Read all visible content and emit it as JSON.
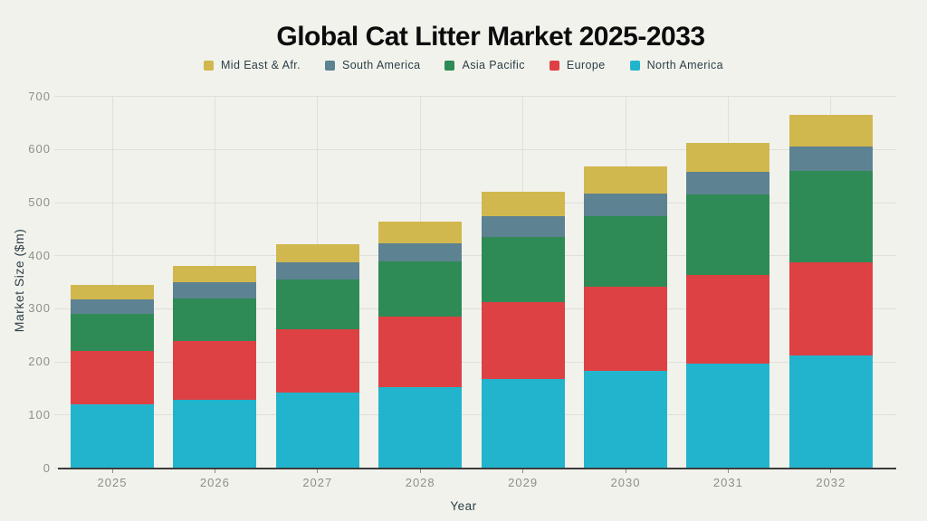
{
  "chart_data": {
    "type": "bar",
    "stacked": true,
    "title": "Global Cat Litter Market 2025-2033",
    "xlabel": "Year",
    "ylabel": "Market Size ($m)",
    "categories": [
      "2025",
      "2026",
      "2027",
      "2028",
      "2029",
      "2030",
      "2031",
      "2032"
    ],
    "series": [
      {
        "name": "Mid East & Afr.",
        "color": "#d1b84e",
        "values": [
          27,
          29,
          34,
          41,
          46,
          51,
          54,
          61
        ]
      },
      {
        "name": "South America",
        "color": "#5d8292",
        "values": [
          27,
          31,
          33,
          34,
          39,
          42,
          43,
          45
        ]
      },
      {
        "name": "Asia Pacific",
        "color": "#2e8b55",
        "values": [
          71,
          80,
          93,
          104,
          122,
          134,
          151,
          172
        ]
      },
      {
        "name": "Europe",
        "color": "#dd4144",
        "values": [
          100,
          111,
          119,
          132,
          145,
          157,
          167,
          176
        ]
      },
      {
        "name": "North America",
        "color": "#23b4cd",
        "values": [
          120,
          129,
          143,
          153,
          168,
          184,
          197,
          212
        ]
      }
    ],
    "stack_order_bottom_to_top": [
      "North America",
      "Europe",
      "Asia Pacific",
      "South America",
      "Mid East & Afr."
    ],
    "totals": [
      345,
      380,
      422,
      464,
      520,
      568,
      612,
      666
    ],
    "y_ticks": [
      0,
      100,
      200,
      300,
      400,
      500,
      600,
      700
    ],
    "ylim": [
      0,
      700
    ],
    "grid": true,
    "legend_position": "top"
  },
  "colors": {
    "background": "#f1f2ec",
    "grid": "#dfe0d9",
    "axis_line": "#3c3c3c",
    "tick_label": "#8d8f88",
    "axis_title": "#2c3e47",
    "title_text": "#0c0c0c",
    "legend_text": "#2c3e47"
  }
}
